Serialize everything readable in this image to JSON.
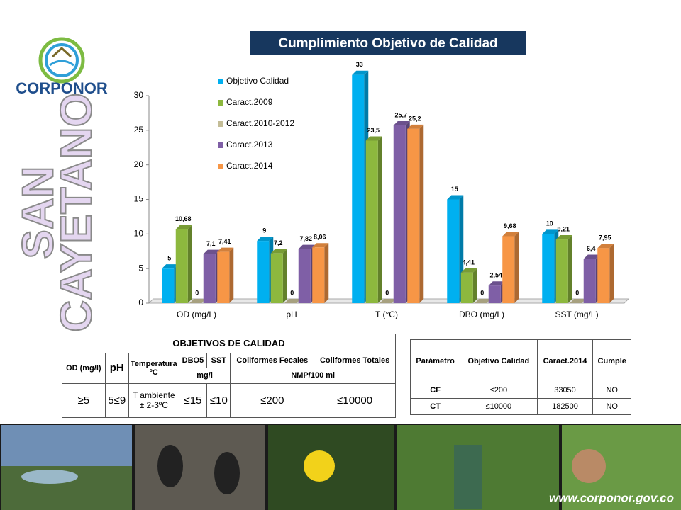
{
  "brand": "CORPONOR",
  "side_title": [
    "SAN",
    "CAYETANO"
  ],
  "chart_data": {
    "type": "bar3d",
    "title": "Cumplimiento Objetivo de Calidad",
    "categories": [
      "OD (mg/L)",
      "pH",
      "T (°C)",
      "DBO (mg/L)",
      "SST (mg/L)"
    ],
    "series": [
      {
        "name": "Objetivo Calidad",
        "color": "#00b0f0",
        "values": [
          5,
          9,
          33,
          15,
          10
        ]
      },
      {
        "name": "Caract.2009",
        "color": "#8db83e",
        "values": [
          10.68,
          7.2,
          23.5,
          4.41,
          9.21
        ],
        "value_labels": [
          "10,68",
          "7,2",
          "23,5",
          "4,41",
          "9,21"
        ]
      },
      {
        "name": "Caract.2010-2012",
        "color": "#c4bd97",
        "values": [
          0,
          0,
          0,
          0,
          0
        ]
      },
      {
        "name": "Caract.2013",
        "color": "#7f5fa6",
        "values": [
          7.1,
          7.82,
          25.7,
          2.54,
          6.4
        ],
        "value_labels": [
          "7,1",
          "7,82",
          "25,7",
          "2,54",
          "6,4"
        ]
      },
      {
        "name": "Caract.2014",
        "color": "#f79646",
        "values": [
          7.41,
          8.06,
          25.2,
          9.68,
          7.95
        ],
        "value_labels": [
          "7,41",
          "8,06",
          "25,2",
          "9,68",
          "7,95"
        ]
      }
    ],
    "ylim": [
      0,
      30
    ],
    "yticks": [
      0,
      5,
      10,
      15,
      20,
      25,
      30
    ],
    "legend": "top-right",
    "grid": false
  },
  "objectives_table": {
    "title": "OBJETIVOS DE CALIDAD",
    "headers": [
      "OD (mg/l)",
      "pH",
      "Temperatura ºC",
      "DBO5",
      "SST",
      "Coliformes Fecales",
      "Coliformes Totales"
    ],
    "units": [
      "mg/l",
      "NMP/100 ml"
    ],
    "values": [
      "≥5",
      "5≤9",
      "T ambiente ± 2-3ºC",
      "≤15",
      "≤10",
      "≤200",
      "≤10000"
    ]
  },
  "compliance_table": {
    "headers": [
      "Parámetro",
      "Objetivo Calidad",
      "Caract.2014",
      "Cumple"
    ],
    "rows": [
      [
        "CF",
        "≤200",
        "33050",
        "NO"
      ],
      [
        "CT",
        "≤10000",
        "182500",
        "NO"
      ]
    ]
  },
  "footer_url": "www.corponor.gov.co"
}
